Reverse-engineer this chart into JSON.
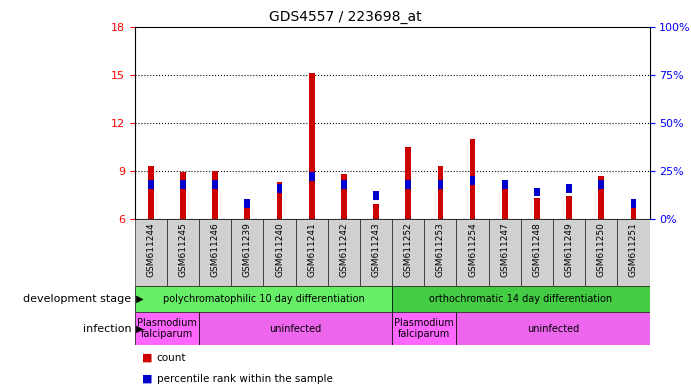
{
  "title": "GDS4557 / 223698_at",
  "samples": [
    "GSM611244",
    "GSM611245",
    "GSM611246",
    "GSM611239",
    "GSM611240",
    "GSM611241",
    "GSM611242",
    "GSM611243",
    "GSM611252",
    "GSM611253",
    "GSM611254",
    "GSM611247",
    "GSM611248",
    "GSM611249",
    "GSM611250",
    "GSM611251"
  ],
  "counts": [
    9.3,
    8.9,
    9.0,
    7.2,
    8.3,
    15.1,
    8.8,
    6.9,
    10.5,
    9.3,
    11.0,
    8.1,
    7.3,
    7.4,
    8.7,
    6.8
  ],
  "percentiles": [
    18,
    18,
    18,
    8,
    16,
    22,
    18,
    12,
    18,
    18,
    20,
    18,
    14,
    16,
    18,
    8
  ],
  "ylim": [
    6,
    18
  ],
  "y2lim": [
    0,
    100
  ],
  "yticks": [
    6,
    9,
    12,
    15,
    18
  ],
  "y2ticks": [
    0,
    25,
    50,
    75,
    100
  ],
  "bar_color": "#cc0000",
  "percentile_color": "#0000cc",
  "bar_width": 0.18,
  "percentile_bar_height": 0.55,
  "dev_stage_groups": [
    {
      "label": "polychromatophilic 10 day differentiation",
      "start": 0,
      "end": 8,
      "color": "#66ee66"
    },
    {
      "label": "orthochromatic 14 day differentiation",
      "start": 8,
      "end": 16,
      "color": "#44cc44"
    }
  ],
  "infection_groups": [
    {
      "label": "Plasmodium\nfalciparum",
      "start": 0,
      "end": 2,
      "color": "#ff66ff"
    },
    {
      "label": "uninfected",
      "start": 2,
      "end": 8,
      "color": "#ee66ee"
    },
    {
      "label": "Plasmodium\nfalciparum",
      "start": 8,
      "end": 10,
      "color": "#ff66ff"
    },
    {
      "label": "uninfected",
      "start": 10,
      "end": 16,
      "color": "#ee66ee"
    }
  ],
  "legend_count_label": "count",
  "legend_percentile_label": "percentile rank within the sample",
  "dev_stage_label": "development stage",
  "infection_label": "infection",
  "tick_bg_color": "#d0d0d0"
}
